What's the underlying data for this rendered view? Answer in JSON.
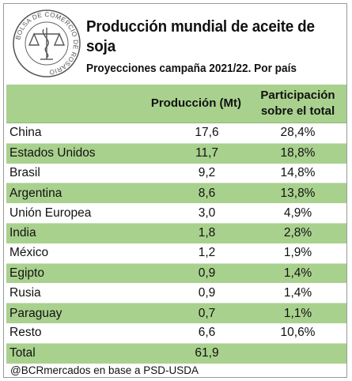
{
  "header": {
    "seal_text": "BOLSA DE COMERCIO DE ROSARIO",
    "title": "Producción mundial de aceite de soja",
    "subtitle": "Proyecciones campaña 2021/22. Por país"
  },
  "chart_data": {
    "type": "table",
    "columns": [
      "",
      "Producción (Mt)",
      "Participación sobre el total"
    ],
    "rows": [
      {
        "country": "China",
        "production": "17,6",
        "share": "28,4%"
      },
      {
        "country": "Estados Unidos",
        "production": "11,7",
        "share": "18,8%"
      },
      {
        "country": "Brasil",
        "production": "9,2",
        "share": "14,8%"
      },
      {
        "country": "Argentina",
        "production": "8,6",
        "share": "13,8%"
      },
      {
        "country": "Unión Europea",
        "production": "3,0",
        "share": "4,9%"
      },
      {
        "country": "India",
        "production": "1,8",
        "share": "2,8%"
      },
      {
        "country": "México",
        "production": "1,2",
        "share": "1,9%"
      },
      {
        "country": "Egipto",
        "production": "0,9",
        "share": "1,4%"
      },
      {
        "country": "Rusia",
        "production": "0,9",
        "share": "1,4%"
      },
      {
        "country": "Paraguay",
        "production": "0,7",
        "share": "1,1%"
      },
      {
        "country": "Resto",
        "production": "6,6",
        "share": "10,6%"
      }
    ],
    "total": {
      "label": "Total",
      "production": "61,9",
      "share": ""
    }
  },
  "footer": {
    "source": "@BCRmercados en base a PSD-USDA"
  },
  "colors": {
    "band": "#a9d18e",
    "text": "#111111"
  }
}
